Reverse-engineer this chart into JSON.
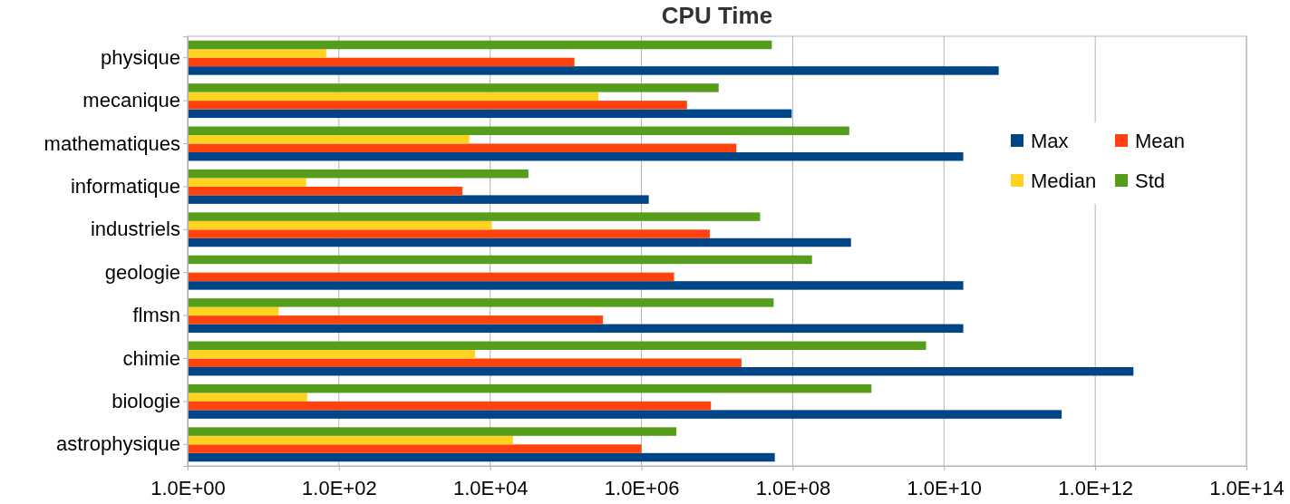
{
  "chart_data": {
    "type": "bar",
    "orientation": "horizontal",
    "title": "CPU Time",
    "log": "x",
    "grid": "x",
    "legend": "right",
    "categories": [
      "physique",
      "mecanique",
      "mathematiques",
      "informatique",
      "industriels",
      "geologie",
      "flmsn",
      "chimie",
      "biologie",
      "astrophysique"
    ],
    "xlim": [
      1,
      100000000000000.0
    ],
    "xticks": [
      {
        "value": 1,
        "label": "1.0E+00"
      },
      {
        "value": 100,
        "label": "1.0E+02"
      },
      {
        "value": 10000,
        "label": "1.0E+04"
      },
      {
        "value": 1000000,
        "label": "1.0E+06"
      },
      {
        "value": 100000000,
        "label": "1.0E+08"
      },
      {
        "value": 10000000000,
        "label": "1.0E+10"
      },
      {
        "value": 1000000000000,
        "label": "1.0E+12"
      },
      {
        "value": 100000000000000,
        "label": "1.0E+14"
      }
    ],
    "series": [
      {
        "name": "Max",
        "color": "#004586",
        "values": [
          53000000000.0,
          97000000.0,
          18000000000.0,
          1250000.0,
          590000000.0,
          18000000000.0,
          18000000000.0,
          3200000000000.0,
          360000000000.0,
          58000000.0
        ]
      },
      {
        "name": "Mean",
        "color": "#ff420e",
        "values": [
          130000.0,
          4000000.0,
          18000000.0,
          4300,
          8000000.0,
          2700000.0,
          310000.0,
          21000000.0,
          8300000.0,
          1000000.0
        ]
      },
      {
        "name": "Median",
        "color": "#ffd320",
        "values": [
          68,
          270000.0,
          5300,
          37,
          10500.0,
          null,
          16,
          6300,
          38,
          20000.0
        ]
      },
      {
        "name": "Std",
        "color": "#579d1c",
        "values": [
          53000000.0,
          10500000.0,
          560000000.0,
          32000.0,
          37000000.0,
          180000000.0,
          56000000.0,
          5800000000.0,
          1100000000.0,
          2900000.0
        ]
      }
    ]
  }
}
